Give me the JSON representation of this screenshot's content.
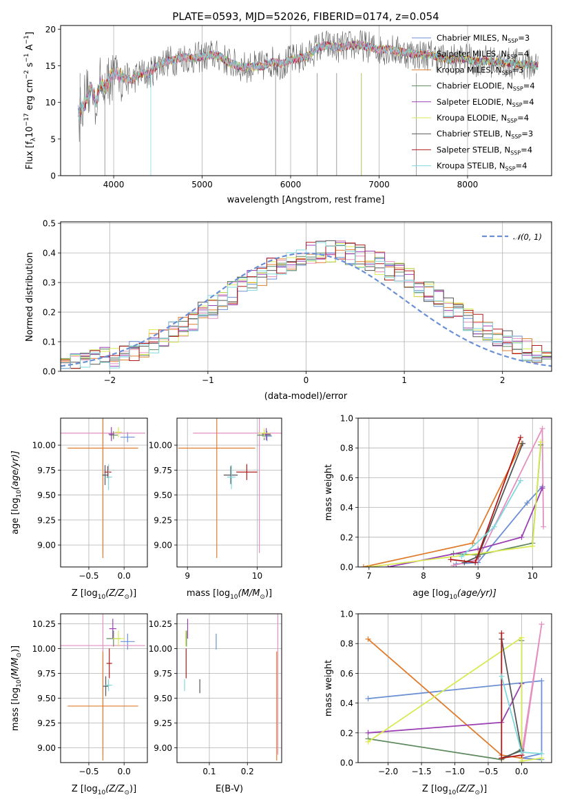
{
  "figure": {
    "title": "PLATE=0593, MJD=52026, FIBERID=0174, z=0.054"
  },
  "colors": {
    "ChabrierMILES": "#6a8fd4",
    "SalpeterMILES": "#e48fbf",
    "KroupaMILES": "#e07b2b",
    "ChabrierELODIE": "#5e8a5e",
    "SalpeterELODIE": "#9a3fb3",
    "KroupaELODIE": "#d9ea55",
    "ChabrierSTELIB": "#555555",
    "SalpeterSTELIB": "#b01818",
    "KroupaSTELIB": "#7fd8dc"
  },
  "chart_data": [
    {
      "id": "spectrum",
      "type": "line",
      "xlabel": "wavelength [Angstrom, rest frame]",
      "ylabel_base": "Flux [f",
      "ylabel_unit": "10",
      "ylabel_exp1": "−17",
      "ylabel_mid": " erg cm",
      "ylabel_exp2": "−2",
      "ylabel_s": " s",
      "ylabel_exp3": "−1",
      "ylabel_end": " A",
      "ylabel_exp4": "−1",
      "ylabel_close": "]",
      "xlim": [
        3400,
        8950
      ],
      "ylim": [
        0,
        20.5
      ],
      "xticks": [
        4000,
        5000,
        6000,
        7000,
        8000
      ],
      "yticks": [
        0,
        5,
        10,
        15,
        20
      ],
      "grid": "x-only",
      "legend_position": "right",
      "continuum": {
        "x": [
          3600,
          3650,
          3700,
          3750,
          3800,
          3850,
          3900,
          3950,
          4000,
          4100,
          4200,
          4300,
          4400,
          4500,
          4600,
          4700,
          4800,
          4900,
          5000,
          5100,
          5200,
          5300,
          5400,
          5500,
          5600,
          5700,
          5800,
          5900,
          6000,
          6100,
          6200,
          6300,
          6400,
          6500,
          6600,
          6700,
          6800,
          6900,
          7000,
          7100,
          7200,
          7300,
          7400,
          7500,
          7600,
          7700,
          7800,
          7900,
          8000,
          8100,
          8200,
          8300,
          8400,
          8500,
          8600,
          8700,
          8800
        ],
        "y": [
          8.5,
          9.5,
          10.5,
          12.0,
          10.0,
          12.5,
          12.0,
          13.0,
          14.2,
          13.5,
          13.0,
          14.0,
          13.8,
          15.2,
          15.6,
          15.8,
          16.2,
          16.0,
          16.2,
          16.5,
          16.3,
          15.5,
          15.0,
          14.8,
          14.9,
          15.0,
          15.6,
          15.2,
          15.8,
          16.0,
          16.3,
          17.5,
          17.8,
          17.5,
          17.6,
          17.8,
          17.8,
          17.5,
          17.2,
          17.3,
          17.0,
          16.8,
          16.6,
          16.5,
          16.5,
          16.0,
          15.8,
          16.0,
          15.9,
          15.6,
          15.7,
          15.5,
          15.4,
          15.3,
          15.2,
          15.2,
          15.0
        ]
      },
      "legend": [
        {
          "name": "Chabrier MILES",
          "color": "#6a8fd4",
          "nssp": "3"
        },
        {
          "name": "Salpeter MILES",
          "color": "#e48fbf",
          "nssp": "4"
        },
        {
          "name": "Kroupa MILES",
          "color": "#e07b2b",
          "nssp": "3"
        },
        {
          "name": "Chabrier ELODIE",
          "color": "#5e8a5e",
          "nssp": "4"
        },
        {
          "name": "Salpeter ELODIE",
          "color": "#9a3fb3",
          "nssp": "4"
        },
        {
          "name": "Kroupa ELODIE",
          "color": "#d9ea55",
          "nssp": "4"
        },
        {
          "name": "Chabrier STELIB",
          "color": "#555555",
          "nssp": "3"
        },
        {
          "name": "Salpeter STELIB",
          "color": "#b01818",
          "nssp": "4"
        },
        {
          "name": "Kroupa STELIB",
          "color": "#7fd8dc",
          "nssp": "4"
        }
      ]
    },
    {
      "id": "residuals",
      "type": "histogram",
      "xlabel": "(data-model)/error",
      "ylabel": "Normed distribution",
      "xlim": [
        -2.5,
        2.5
      ],
      "ylim": [
        0,
        0.505
      ],
      "xticks": [
        -2,
        -1,
        0,
        1,
        2
      ],
      "yticks": [
        0.0,
        0.1,
        0.2,
        0.3,
        0.4,
        0.5
      ],
      "grid": "both",
      "bin_width": 0.1,
      "gaussian_legend": "𝒩(0, 1)",
      "gaussian_legend_position": "top-right"
    },
    {
      "id": "age_vs_Z",
      "type": "scatter",
      "xlabel": "Z [log",
      "xlabel_sub": "10",
      "xlabel_end": "(Z/Z",
      "xlabel_tail": ")]",
      "ylabel": "age  [log",
      "ylabel_sub": "10",
      "ylabel_end": "(age/yr)]",
      "xlim": [
        -0.9,
        0.33
      ],
      "ylim": [
        8.78,
        10.27
      ],
      "xticks": [
        -0.5,
        0.0
      ],
      "yticks": [
        9.0,
        9.25,
        9.5,
        9.75,
        10.0
      ],
      "points": [
        {
          "color": "#6a8fd4",
          "x": 0.05,
          "y": 10.08,
          "ex": 0.1,
          "ey": 0.05
        },
        {
          "color": "#e48fbf",
          "x": -0.3,
          "y": 10.12,
          "ex": 0.6,
          "ey": 1.2
        },
        {
          "color": "#e07b2b",
          "x": -0.3,
          "y": 9.97,
          "ex": 0.5,
          "ey": 1.1
        },
        {
          "color": "#5e8a5e",
          "x": -0.15,
          "y": 10.1,
          "ex": 0.06,
          "ey": 0.04
        },
        {
          "color": "#9a3fb3",
          "x": -0.18,
          "y": 10.11,
          "ex": 0.04,
          "ey": 0.07
        },
        {
          "color": "#d9ea55",
          "x": -0.08,
          "y": 10.13,
          "ex": 0.05,
          "ey": 0.05
        },
        {
          "color": "#555555",
          "x": -0.27,
          "y": 9.7,
          "ex": 0.04,
          "ey": 0.1
        },
        {
          "color": "#b01818",
          "x": -0.23,
          "y": 9.73,
          "ex": 0.05,
          "ey": 0.06
        },
        {
          "color": "#7fd8dc",
          "x": -0.22,
          "y": 9.68,
          "ex": 0.05,
          "ey": 0.13
        }
      ]
    },
    {
      "id": "age_vs_mass",
      "type": "scatter",
      "xlabel": "mass [log",
      "xlabel_sub": "10",
      "xlabel_end": "(M/M",
      "xlabel_tail": ")]",
      "xlim": [
        8.85,
        10.35
      ],
      "ylim": [
        8.78,
        10.27
      ],
      "xticks": [
        9,
        10
      ],
      "yticks": [
        9.0,
        9.25,
        9.5,
        9.75,
        10.0
      ],
      "points": [
        {
          "color": "#6a8fd4",
          "x": 10.14,
          "y": 10.09,
          "ex": 0.07,
          "ey": 0.05
        },
        {
          "color": "#e48fbf",
          "x": 10.03,
          "y": 10.12,
          "ex": 0.95,
          "ey": 1.2
        },
        {
          "color": "#e07b2b",
          "x": 9.42,
          "y": 9.97,
          "ex": 0.55,
          "ey": 1.1
        },
        {
          "color": "#5e8a5e",
          "x": 10.1,
          "y": 10.1,
          "ex": 0.1,
          "ey": 0.05
        },
        {
          "color": "#9a3fb3",
          "x": 10.13,
          "y": 10.11,
          "ex": 0.06,
          "ey": 0.06
        },
        {
          "color": "#d9ea55",
          "x": 10.1,
          "y": 10.12,
          "ex": 0.08,
          "ey": 0.05
        },
        {
          "color": "#555555",
          "x": 9.62,
          "y": 9.7,
          "ex": 0.1,
          "ey": 0.09
        },
        {
          "color": "#b01818",
          "x": 9.85,
          "y": 9.73,
          "ex": 0.15,
          "ey": 0.08
        },
        {
          "color": "#7fd8dc",
          "x": 9.63,
          "y": 9.68,
          "ex": 0.06,
          "ey": 0.12
        }
      ]
    },
    {
      "id": "weight_vs_age",
      "type": "line",
      "xlabel": "age  [log",
      "xlabel_sub": "10",
      "xlabel_end": "(age/yr)]",
      "ylabel": "mass weight",
      "xlim": [
        6.8,
        10.35
      ],
      "ylim": [
        0,
        1.0
      ],
      "xticks": [
        7,
        8,
        9,
        10
      ],
      "yticks": [
        0.0,
        0.2,
        0.4,
        0.6,
        0.8,
        1.0
      ],
      "grid": "both",
      "series": [
        {
          "color": "#6a8fd4",
          "x": [
            8.6,
            9.0,
            9.9,
            10.18
          ],
          "y": [
            0.02,
            0.03,
            0.43,
            0.54
          ]
        },
        {
          "color": "#e48fbf",
          "x": [
            8.55,
            9.0,
            10.18,
            10.2
          ],
          "y": [
            0.01,
            0.05,
            0.93,
            0.27
          ]
        },
        {
          "color": "#e07b2b",
          "x": [
            6.9,
            8.9,
            9.8
          ],
          "y": [
            0.0,
            0.16,
            0.83
          ]
        },
        {
          "color": "#5e8a5e",
          "x": [
            8.55,
            9.0,
            10.0,
            10.15
          ],
          "y": [
            0.09,
            0.08,
            0.16,
            0.82
          ]
        },
        {
          "color": "#9a3fb3",
          "x": [
            7.35,
            9.0,
            9.8,
            10.18
          ],
          "y": [
            0.0,
            0.12,
            0.2,
            0.53
          ]
        },
        {
          "color": "#d9ea55",
          "x": [
            7.0,
            9.0,
            10.0,
            10.15
          ],
          "y": [
            0.0,
            0.09,
            0.14,
            0.84
          ]
        },
        {
          "color": "#555555",
          "x": [
            8.75,
            9.0,
            9.82
          ],
          "y": [
            0.03,
            0.07,
            0.83
          ]
        },
        {
          "color": "#b01818",
          "x": [
            8.5,
            8.95,
            9.78
          ],
          "y": [
            0.05,
            0.03,
            0.87
          ]
        },
        {
          "color": "#7fd8dc",
          "x": [
            8.7,
            9.3,
            9.78
          ],
          "y": [
            0.07,
            0.27,
            0.58
          ]
        }
      ]
    },
    {
      "id": "mass_vs_Z",
      "type": "scatter",
      "xlabel": "Z [log",
      "xlabel_sub": "10",
      "xlabel_end": "(Z/Z",
      "xlabel_tail": ")]",
      "ylabel": "mass [log",
      "ylabel_sub": "10",
      "ylabel_end": "(M/M",
      "ylabel_tail": ")]",
      "xlim": [
        -0.9,
        0.33
      ],
      "ylim": [
        8.85,
        10.35
      ],
      "xticks": [
        -0.5,
        0.0
      ],
      "yticks": [
        9.0,
        9.25,
        9.5,
        9.75,
        10.0,
        10.25
      ],
      "points": [
        {
          "color": "#6a8fd4",
          "x": 0.05,
          "y": 10.07,
          "ex": 0.1,
          "ey": 0.08
        },
        {
          "color": "#e48fbf",
          "x": -0.3,
          "y": 10.03,
          "ex": 0.6,
          "ey": 1.1
        },
        {
          "color": "#e07b2b",
          "x": -0.3,
          "y": 9.42,
          "ex": 0.5,
          "ey": 0.55
        },
        {
          "color": "#5e8a5e",
          "x": -0.15,
          "y": 10.1,
          "ex": 0.1,
          "ey": 0.08
        },
        {
          "color": "#9a3fb3",
          "x": -0.16,
          "y": 10.2,
          "ex": 0.05,
          "ey": 0.1
        },
        {
          "color": "#d9ea55",
          "x": -0.08,
          "y": 10.1,
          "ex": 0.08,
          "ey": 0.08
        },
        {
          "color": "#555555",
          "x": -0.26,
          "y": 9.62,
          "ex": 0.04,
          "ey": 0.1
        },
        {
          "color": "#b01818",
          "x": -0.21,
          "y": 9.85,
          "ex": 0.04,
          "ey": 0.15
        },
        {
          "color": "#7fd8dc",
          "x": -0.22,
          "y": 9.63,
          "ex": 0.05,
          "ey": 0.06
        }
      ]
    },
    {
      "id": "mass_vs_EBV",
      "type": "scatter",
      "xlabel": "E(B-V)",
      "xlim": [
        0.015,
        0.29
      ],
      "ylim": [
        8.85,
        10.35
      ],
      "xticks": [
        0.1,
        0.2
      ],
      "yticks": [
        9.0,
        9.25,
        9.5,
        9.75,
        10.0,
        10.25
      ],
      "points": [
        {
          "color": "#6a8fd4",
          "x": 0.118,
          "y": 10.07,
          "ey": 0.08
        },
        {
          "color": "#e48fbf",
          "x": 0.28,
          "y": 10.03,
          "ey": 1.1
        },
        {
          "color": "#e07b2b",
          "x": 0.277,
          "y": 9.42,
          "ey": 0.55
        },
        {
          "color": "#5e8a5e",
          "x": 0.04,
          "y": 10.1,
          "ey": 0.08
        },
        {
          "color": "#9a3fb3",
          "x": 0.043,
          "y": 10.2,
          "ey": 0.1
        },
        {
          "color": "#d9ea55",
          "x": 0.038,
          "y": 10.1,
          "ey": 0.08
        },
        {
          "color": "#555555",
          "x": 0.075,
          "y": 9.62,
          "ey": 0.07
        },
        {
          "color": "#b01818",
          "x": 0.039,
          "y": 9.85,
          "ey": 0.15
        },
        {
          "color": "#7fd8dc",
          "x": 0.035,
          "y": 9.63,
          "ey": 0.06
        }
      ]
    },
    {
      "id": "weight_vs_Z",
      "type": "line",
      "xlabel": "Z [log",
      "xlabel_sub": "10",
      "xlabel_end": "(Z/Z",
      "xlabel_tail": ")]",
      "ylabel": "mass weight",
      "xlim": [
        -2.45,
        0.45
      ],
      "ylim": [
        0,
        1.0
      ],
      "xticks": [
        -2.0,
        -1.5,
        -1.0,
        -0.5,
        0.0
      ],
      "yticks": [
        0.0,
        0.2,
        0.4,
        0.6,
        0.8,
        1.0
      ],
      "grid": "both",
      "series": [
        {
          "color": "#6a8fd4",
          "x": [
            -2.3,
            0.3,
            0.3,
            0.0,
            0.3
          ],
          "y": [
            0.43,
            0.55,
            0.06,
            0.03,
            0.02
          ]
        },
        {
          "color": "#e48fbf",
          "x": [
            0.0,
            0.3,
            0.0
          ],
          "y": [
            0.0,
            0.93,
            0.05
          ]
        },
        {
          "color": "#e07b2b",
          "x": [
            -2.3,
            -0.3,
            0.0
          ],
          "y": [
            0.83,
            0.05,
            0.03
          ]
        },
        {
          "color": "#5e8a5e",
          "x": [
            -2.3,
            -0.3,
            0.0,
            0.0
          ],
          "y": [
            0.16,
            0.02,
            0.09,
            0.82
          ]
        },
        {
          "color": "#9a3fb3",
          "x": [
            -2.3,
            -0.3,
            0.0
          ],
          "y": [
            0.2,
            0.27,
            0.53
          ]
        },
        {
          "color": "#d9ea55",
          "x": [
            -2.3,
            0.0,
            0.0,
            0.3
          ],
          "y": [
            0.14,
            0.84,
            0.01,
            0.03
          ]
        },
        {
          "color": "#555555",
          "x": [
            -0.3,
            0.0,
            -0.3
          ],
          "y": [
            0.83,
            0.08,
            0.03
          ]
        },
        {
          "color": "#b01818",
          "x": [
            -0.3,
            -0.3,
            0.0
          ],
          "y": [
            0.87,
            0.03,
            0.05
          ]
        },
        {
          "color": "#7fd8dc",
          "x": [
            -0.3,
            0.0,
            0.3
          ],
          "y": [
            0.58,
            0.07,
            0.06
          ]
        }
      ]
    }
  ]
}
